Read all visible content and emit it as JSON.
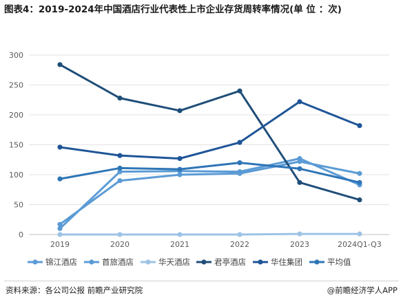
{
  "title": "图表4：2019-2024年中国酒店行业代表性上市企业存货周转率情况(单 位 ：次)",
  "footer": {
    "source": "资料来源：各公司公报 前瞻产业研究院",
    "credit": "@前瞻经济学人APP"
  },
  "chart_data": {
    "type": "line",
    "categories": [
      "2019",
      "2020",
      "2021",
      "2022",
      "2023",
      "2024Q1-Q3"
    ],
    "ylim": [
      0,
      300
    ],
    "yticks": [
      0,
      50,
      100,
      150,
      200,
      250,
      300
    ],
    "grid": true,
    "legend_position": "bottom",
    "series": [
      {
        "name": "锦江酒店",
        "color": "#5b9bd5",
        "values": [
          17,
          90,
          100,
          102,
          122,
          102
        ]
      },
      {
        "name": "首旅酒店",
        "color": "#5b9bd5",
        "values": [
          10,
          105,
          106,
          105,
          127,
          83
        ]
      },
      {
        "name": "华天酒店",
        "color": "#9dc3e6",
        "values": [
          0,
          0,
          0,
          0,
          1,
          1
        ]
      },
      {
        "name": "君亭酒店",
        "color": "#1f4e79",
        "values": [
          284,
          228,
          207,
          240,
          87,
          58
        ]
      },
      {
        "name": "华住集团",
        "color": "#1f5597",
        "values": [
          146,
          132,
          127,
          154,
          222,
          182
        ]
      },
      {
        "name": "平均值",
        "color": "#2e75b6",
        "values": [
          93,
          111,
          109,
          120,
          110,
          87
        ]
      }
    ]
  }
}
